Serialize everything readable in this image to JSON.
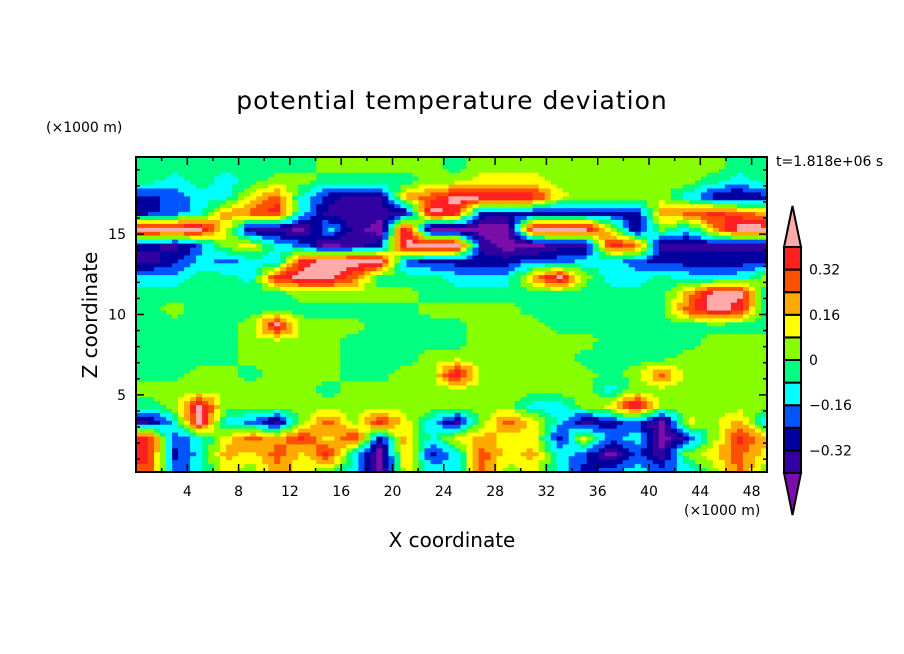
{
  "chart_data": {
    "type": "heatmap",
    "title": "potential temperature deviation",
    "xlabel": "X coordinate",
    "ylabel": "Z coordinate",
    "x_unit": "(×1000 m)",
    "y_unit": "(×1000 m)",
    "time_label": "t=1.818e+06 s",
    "xlim": [
      0,
      49.2
    ],
    "ylim": [
      0.2,
      19.8
    ],
    "x_ticks": [
      4,
      8,
      12,
      16,
      20,
      24,
      28,
      32,
      36,
      40,
      44,
      48
    ],
    "y_ticks": [
      5,
      10,
      15
    ],
    "x_centers": [
      1,
      3,
      5,
      7,
      9,
      11,
      13,
      15,
      17,
      19,
      21,
      23,
      25,
      27,
      29,
      31,
      33,
      35,
      37,
      39,
      41,
      43,
      45,
      47,
      49
    ],
    "z_centers": [
      19.3,
      18.3,
      17.3,
      16.3,
      15.3,
      14.3,
      13.3,
      12.3,
      11.3,
      10.3,
      9.3,
      8.3,
      7.3,
      6.3,
      5.3,
      4.3,
      3.3,
      2.3,
      1.3,
      0.3
    ],
    "values": [
      [
        -0.04,
        -0.04,
        -0.04,
        -0.04,
        -0.04,
        -0.04,
        -0.04,
        0.04,
        0.04,
        0.04,
        0.04,
        0.04,
        -0.04,
        0.04,
        0.04,
        0.04,
        0.04,
        0.04,
        0.04,
        0.04,
        0.04,
        0.04,
        0.04,
        -0.04,
        -0.04
      ],
      [
        -0.04,
        -0.12,
        -0.04,
        -0.12,
        -0.04,
        0.04,
        0.04,
        -0.04,
        -0.04,
        -0.04,
        -0.04,
        0.04,
        0.04,
        0.12,
        0.12,
        0.12,
        0.04,
        0.04,
        0.04,
        0.04,
        0.04,
        0.04,
        -0.04,
        -0.12,
        -0.04
      ],
      [
        -0.28,
        -0.2,
        -0.12,
        -0.12,
        0.12,
        0.28,
        -0.12,
        -0.28,
        -0.36,
        -0.36,
        0.2,
        0.28,
        0.45,
        0.45,
        0.45,
        0.36,
        0.12,
        0.04,
        0.04,
        0.04,
        0.04,
        -0.12,
        -0.28,
        -0.36,
        -0.28
      ],
      [
        -0.28,
        -0.2,
        -0.12,
        0.2,
        0.28,
        0.36,
        -0.12,
        -0.36,
        -0.36,
        -0.36,
        -0.36,
        0.45,
        0.36,
        -0.28,
        -0.28,
        -0.28,
        -0.28,
        -0.28,
        -0.28,
        -0.28,
        0.2,
        0.28,
        0.36,
        0.28,
        0.2
      ],
      [
        0.45,
        0.45,
        0.45,
        0.12,
        -0.36,
        -0.36,
        -0.45,
        -0.12,
        -0.36,
        -0.45,
        0.45,
        -0.45,
        -0.45,
        -0.45,
        -0.45,
        0.45,
        0.45,
        0.45,
        0.12,
        -0.36,
        0.04,
        -0.12,
        0.2,
        0.45,
        0.45
      ],
      [
        -0.28,
        -0.36,
        -0.2,
        0.04,
        0.12,
        -0.12,
        -0.2,
        -0.45,
        -0.36,
        -0.28,
        0.45,
        0.45,
        0.45,
        -0.36,
        -0.45,
        -0.45,
        -0.36,
        -0.36,
        0.36,
        0.28,
        -0.36,
        -0.36,
        -0.36,
        -0.36,
        -0.36
      ],
      [
        -0.36,
        -0.28,
        -0.12,
        -0.2,
        -0.12,
        -0.12,
        0.36,
        0.45,
        0.45,
        0.45,
        -0.2,
        -0.28,
        -0.28,
        -0.28,
        -0.28,
        -0.2,
        -0.2,
        -0.12,
        -0.12,
        -0.2,
        -0.28,
        -0.28,
        -0.28,
        -0.28,
        -0.28
      ],
      [
        -0.12,
        -0.12,
        -0.04,
        -0.04,
        -0.12,
        0.36,
        0.45,
        0.45,
        0.28,
        -0.04,
        -0.04,
        -0.04,
        -0.12,
        -0.12,
        -0.12,
        0.2,
        0.45,
        0.04,
        -0.12,
        -0.12,
        -0.04,
        -0.12,
        -0.12,
        -0.12,
        0.04
      ],
      [
        -0.04,
        -0.04,
        -0.04,
        -0.04,
        -0.04,
        -0.04,
        0.04,
        0.04,
        0.04,
        0.04,
        0.04,
        -0.04,
        -0.04,
        -0.04,
        -0.04,
        -0.04,
        -0.04,
        -0.04,
        -0.04,
        -0.04,
        -0.04,
        0.2,
        0.45,
        0.45,
        -0.04
      ],
      [
        -0.04,
        0.04,
        -0.04,
        -0.04,
        -0.04,
        -0.04,
        -0.04,
        -0.04,
        -0.04,
        -0.04,
        -0.04,
        0.04,
        0.04,
        0.04,
        0.04,
        -0.04,
        -0.04,
        -0.04,
        -0.04,
        -0.04,
        -0.04,
        0.28,
        0.45,
        0.36,
        -0.04
      ],
      [
        -0.04,
        -0.04,
        -0.04,
        -0.04,
        0.04,
        0.45,
        0.04,
        0.04,
        0.04,
        -0.04,
        -0.04,
        -0.04,
        -0.04,
        0.04,
        0.04,
        0.04,
        -0.04,
        -0.04,
        -0.04,
        -0.04,
        -0.04,
        -0.04,
        -0.04,
        -0.04,
        -0.04
      ],
      [
        -0.04,
        -0.04,
        -0.04,
        -0.04,
        0.04,
        0.04,
        0.04,
        0.04,
        -0.04,
        -0.04,
        -0.04,
        -0.04,
        -0.04,
        0.04,
        0.04,
        0.04,
        0.04,
        0.04,
        -0.04,
        -0.04,
        -0.04,
        -0.04,
        0.04,
        0.04,
        0.04
      ],
      [
        -0.04,
        -0.04,
        -0.04,
        -0.04,
        0.04,
        0.04,
        0.04,
        0.04,
        -0.04,
        -0.04,
        -0.04,
        0.04,
        0.04,
        0.04,
        0.04,
        0.04,
        0.04,
        -0.04,
        -0.04,
        -0.04,
        -0.04,
        0.04,
        0.04,
        0.04,
        0.04
      ],
      [
        -0.04,
        -0.04,
        0.04,
        0.04,
        -0.04,
        0.04,
        0.04,
        0.04,
        -0.04,
        -0.04,
        0.04,
        0.04,
        0.45,
        0.04,
        0.04,
        0.04,
        0.04,
        0.04,
        -0.04,
        0.04,
        0.28,
        0.04,
        0.04,
        0.04,
        0.04
      ],
      [
        0.04,
        0.04,
        0.04,
        0.04,
        0.04,
        0.04,
        0.04,
        -0.04,
        0.04,
        0.04,
        0.04,
        0.04,
        0.04,
        0.04,
        0.04,
        0.04,
        0.04,
        0.04,
        -0.12,
        0.04,
        0.04,
        0.04,
        0.04,
        0.04,
        0.04
      ],
      [
        -0.04,
        0.04,
        0.45,
        0.04,
        0.04,
        0.04,
        0.04,
        0.04,
        0.04,
        0.04,
        0.04,
        0.04,
        0.04,
        0.04,
        0.04,
        -0.12,
        -0.12,
        0.04,
        0.12,
        0.45,
        0.04,
        0.04,
        0.04,
        0.04,
        0.04
      ],
      [
        -0.36,
        -0.12,
        0.45,
        -0.12,
        -0.2,
        -0.36,
        0.04,
        0.28,
        0.04,
        0.36,
        0.12,
        -0.12,
        -0.36,
        0.04,
        0.28,
        0.12,
        -0.12,
        -0.36,
        -0.28,
        -0.2,
        -0.45,
        0.12,
        0.04,
        0.2,
        -0.12
      ],
      [
        0.36,
        -0.2,
        -0.12,
        0.12,
        0.28,
        0.2,
        0.36,
        0.12,
        0.36,
        -0.28,
        0.2,
        -0.12,
        0.12,
        0.2,
        0.12,
        0.12,
        -0.28,
        0.12,
        -0.2,
        -0.12,
        -0.45,
        -0.28,
        0.04,
        0.36,
        0.2
      ],
      [
        0.36,
        -0.28,
        -0.12,
        0.2,
        0.12,
        0.28,
        0.12,
        0.36,
        -0.12,
        -0.45,
        0.2,
        -0.28,
        -0.12,
        0.28,
        0.12,
        0.2,
        -0.12,
        -0.2,
        -0.45,
        -0.2,
        -0.36,
        0.04,
        0.12,
        0.28,
        0.12
      ],
      [
        0.28,
        -0.2,
        -0.12,
        0.12,
        0.04,
        0.2,
        0.12,
        0.04,
        -0.12,
        -0.45,
        0.12,
        -0.12,
        -0.12,
        0.28,
        0.04,
        0.12,
        -0.12,
        -0.28,
        -0.2,
        -0.12,
        -0.2,
        -0.12,
        0.04,
        0.28,
        0.04
      ]
    ],
    "levels": [
      -0.4,
      -0.32,
      -0.24,
      -0.16,
      -0.08,
      0,
      0.08,
      0.16,
      0.24,
      0.32,
      0.4
    ],
    "colors": [
      "#7b0dab",
      "#3300a0",
      "#0000a0",
      "#0055ff",
      "#00ffff",
      "#00ff80",
      "#88ff00",
      "#ffff00",
      "#ffaa00",
      "#ff5000",
      "#ff2020",
      "#ffaaaa"
    ],
    "colorbar_labels": [
      "0.32",
      "0.16",
      "0",
      "-0.16",
      "-0.32"
    ],
    "colorbar_label_values": [
      0.32,
      0.16,
      0,
      -0.16,
      -0.32
    ]
  }
}
